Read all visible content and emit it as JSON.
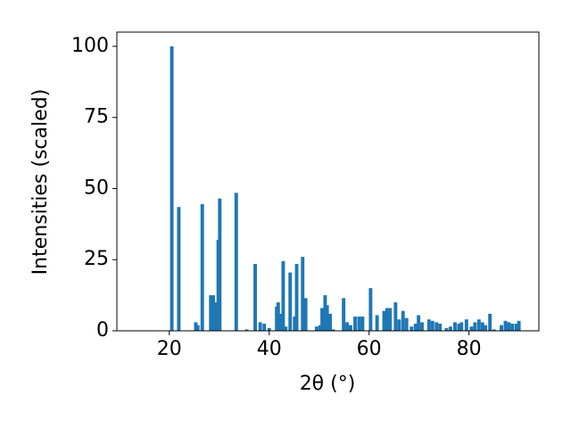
{
  "chart_data": {
    "type": "bar",
    "xlabel": "2θ (°)",
    "ylabel": "Intensities (scaled)",
    "x": [
      20.5,
      21.9,
      25.3,
      25.7,
      26.6,
      28.3,
      28.8,
      29.3,
      29.8,
      30.1,
      33.4,
      35.5,
      37.2,
      38.2,
      39,
      40,
      41.5,
      41.8,
      42.2,
      42.8,
      43.3,
      44.2,
      45.1,
      45.5,
      46.7,
      47.3,
      49.5,
      50.2,
      50.6,
      51.2,
      51.6,
      52.2,
      52.8,
      54.9,
      55.6,
      56.3,
      57.2,
      58,
      58.7,
      60.3,
      61.6,
      63,
      63.6,
      64.2,
      65.3,
      66,
      66.8,
      67.5,
      68.5,
      69.3,
      69.9,
      70.6,
      72,
      72.7,
      73.5,
      74.2,
      75.5,
      76.3,
      77.2,
      78,
      78.5,
      79.5,
      80.5,
      81.2,
      82,
      82.7,
      83.3,
      84.2,
      85,
      86.5,
      87.3,
      88,
      88.7,
      89.5,
      90
    ],
    "values": [
      100,
      43.5,
      3,
      2,
      44.5,
      12.5,
      12.5,
      10,
      32,
      46.5,
      48.5,
      0.5,
      23.5,
      3,
      2.5,
      1,
      8.5,
      10,
      6,
      24.5,
      1.5,
      20.5,
      5,
      23.5,
      26,
      11.5,
      1.5,
      2,
      8,
      12.5,
      9,
      6,
      0.5,
      11.5,
      3,
      2,
      5,
      5,
      5,
      15,
      5.5,
      7,
      8,
      8,
      10,
      4,
      7,
      4.5,
      1.5,
      2.5,
      5.5,
      3,
      4,
      3.5,
      3,
      2.5,
      1,
      1.5,
      3,
      2.5,
      3,
      4,
      1.5,
      3,
      4,
      3,
      2,
      6,
      0.5,
      2,
      3.5,
      3,
      2.5,
      2.5,
      3.5
    ],
    "color": "#1f77b4",
    "xlim": [
      9.5,
      94
    ],
    "ylim": [
      0,
      105
    ],
    "xticks": [
      20,
      40,
      60,
      80
    ],
    "yticks": [
      0,
      25,
      50,
      75,
      100
    ]
  }
}
